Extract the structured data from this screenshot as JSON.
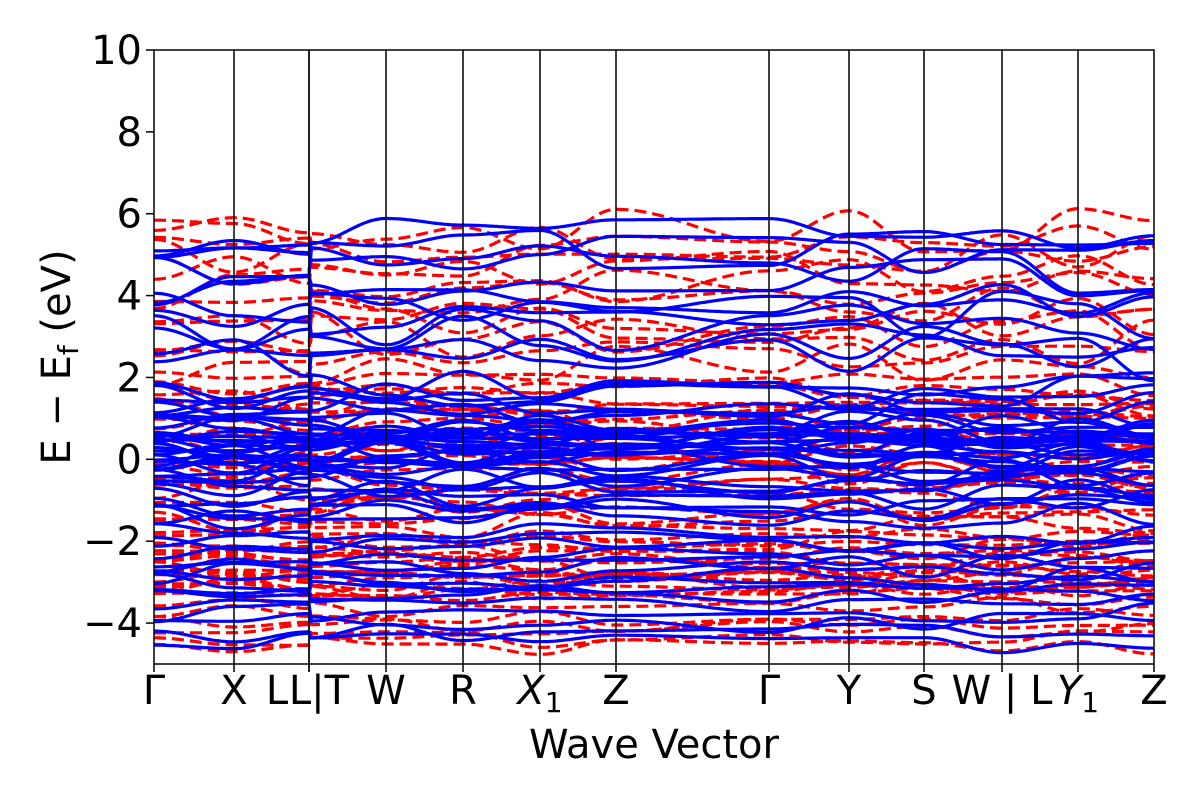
{
  "chart_data": {
    "type": "line",
    "title": "",
    "xlabel": "Wave Vector",
    "ylabel": "E − E_f (eV)",
    "ylabel_main": "E − E",
    "ylabel_sub": "f",
    "ylabel_tail": " (eV)",
    "ylim": [
      -5,
      10
    ],
    "yticks": [
      "−4",
      "−2",
      "0",
      "2",
      "4",
      "6",
      "8",
      "10"
    ],
    "ytick_values": [
      -4,
      -2,
      0,
      2,
      4,
      6,
      8,
      10
    ],
    "xlim": [
      0,
      1
    ],
    "kpoints": [
      {
        "label": "Γ",
        "x": 0.0
      },
      {
        "label": "X",
        "x": 0.08
      },
      {
        "label": "L",
        "x": 0.155,
        "sub": ""
      },
      {
        "label": "L|T",
        "x": 0.155
      },
      {
        "label": "W",
        "x": 0.232
      },
      {
        "label": "R",
        "x": 0.309
      },
      {
        "label": "X",
        "x": 0.386,
        "sub": "1"
      },
      {
        "label": "Z",
        "x": 0.462
      },
      {
        "label": "Γ",
        "x": 0.615
      },
      {
        "label": "Y",
        "x": 0.695
      },
      {
        "label": "S",
        "x": 0.77
      },
      {
        "label": "W | L",
        "x": 0.848
      },
      {
        "label": "Y",
        "x": 0.924,
        "sub": "1"
      },
      {
        "label": "Z",
        "x": 1.0
      }
    ],
    "series": [
      {
        "style": "dashed",
        "color": "#ff0000"
      },
      {
        "style": "solid",
        "color": "#0000ff"
      }
    ],
    "grid": false,
    "legend": "none"
  }
}
